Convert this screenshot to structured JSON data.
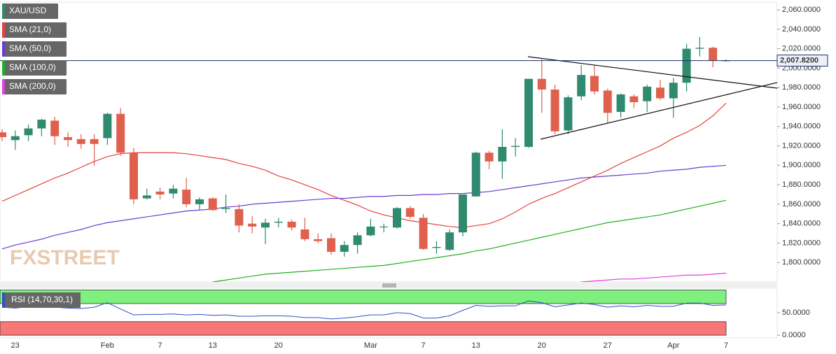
{
  "chart_data": [
    {
      "type": "candlestick",
      "name": "XAU/USD",
      "up_color": "#2f8a6f",
      "down_color": "#e0604e",
      "categories": [
        null,
        "23",
        null,
        null,
        null,
        null,
        null,
        null,
        "Feb",
        null,
        null,
        null,
        "7",
        null,
        null,
        null,
        "13",
        null,
        null,
        null,
        null,
        "20",
        null,
        null,
        null,
        null,
        null,
        null,
        "Mar",
        null,
        null,
        null,
        "7",
        null,
        null,
        null,
        "13",
        null,
        null,
        null,
        null,
        "20",
        null,
        null,
        null,
        null,
        "27",
        null,
        null,
        null,
        null,
        "Apr",
        null,
        null,
        null,
        "7"
      ],
      "open": [
        1934,
        1926,
        1931,
        1938,
        1946,
        1929,
        1927,
        1927,
        1928,
        1953,
        1913,
        1866,
        1873,
        1871,
        1875,
        1860,
        1866,
        1855,
        1855,
        1840,
        1836,
        1841,
        1842,
        1834,
        1824,
        1825,
        1811,
        1818,
        1828,
        1837,
        1836,
        1856,
        1846,
        1815,
        1813,
        1831,
        1868,
        1913,
        1904,
        1919,
        1919,
        1989,
        1978,
        1936,
        1971,
        1992,
        1977,
        1955,
        1971,
        1966,
        1980,
        1969,
        1985,
        2020,
        2021,
        2008
      ],
      "high": [
        1937,
        1936,
        1942,
        1948,
        1950,
        1934,
        1932,
        1932,
        1954,
        1959,
        1918,
        1876,
        1877,
        1880,
        1887,
        1867,
        1867,
        1870,
        1860,
        1848,
        1845,
        1846,
        1844,
        1846,
        1830,
        1830,
        1822,
        1831,
        1845,
        1840,
        1857,
        1858,
        1850,
        1822,
        1834,
        1870,
        1914,
        1915,
        1937,
        1928,
        1989,
        2009,
        1983,
        1972,
        2003,
        2003,
        1979,
        1974,
        1973,
        1983,
        1988,
        1990,
        2025,
        2032,
        2022,
        2009
      ],
      "low": [
        1925,
        1916,
        1925,
        1930,
        1921,
        1919,
        1917,
        1900,
        1921,
        1910,
        1860,
        1865,
        1865,
        1866,
        1857,
        1854,
        1853,
        1851,
        1831,
        1830,
        1819,
        1836,
        1833,
        1822,
        1820,
        1808,
        1806,
        1809,
        1827,
        1831,
        1835,
        1845,
        1813,
        1809,
        1812,
        1827,
        1868,
        1896,
        1886,
        1909,
        1918,
        1954,
        1932,
        1932,
        1967,
        1973,
        1943,
        1949,
        1959,
        1955,
        1967,
        1949,
        1976,
        2012,
        2001,
        2007
      ],
      "close": [
        1929,
        1930,
        1938,
        1947,
        1930,
        1926,
        1922,
        1922,
        1953,
        1913,
        1865,
        1869,
        1870,
        1876,
        1860,
        1865,
        1854,
        1856,
        1838,
        1837,
        1841,
        1842,
        1836,
        1824,
        1822,
        1811,
        1818,
        1828,
        1837,
        1837,
        1856,
        1847,
        1814,
        1816,
        1831,
        1870,
        1913,
        1904,
        1919,
        1920,
        1989,
        1978,
        1935,
        1970,
        1993,
        1976,
        1954,
        1973,
        1965,
        1981,
        1969,
        1985,
        2020,
        2021,
        2008,
        2008
      ],
      "series": [
        {
          "name": "SMA (21,0)",
          "color": "#e8403a",
          "values": [
            1863,
            1869,
            1875,
            1881,
            1887,
            1892,
            1898,
            1904,
            1909,
            1912,
            1913,
            1913,
            1913,
            1913,
            1912,
            1910,
            1908,
            1906,
            1902,
            1899,
            1895,
            1889,
            1885,
            1880,
            1875,
            1869,
            1864,
            1859,
            1853,
            1849,
            1846,
            1843,
            1841,
            1839,
            1837,
            1836,
            1838,
            1840,
            1845,
            1852,
            1860,
            1866,
            1871,
            1877,
            1883,
            1889,
            1895,
            1902,
            1908,
            1914,
            1920,
            1928,
            1934,
            1941,
            1951,
            1964
          ]
        },
        {
          "name": "SMA (50,0)",
          "color": "#6a3cd0",
          "values": [
            1814,
            1818,
            1821,
            1824,
            1828,
            1831,
            1834,
            1838,
            1841,
            1843,
            1845,
            1847,
            1849,
            1851,
            1853,
            1854,
            1855,
            1857,
            1858,
            1860,
            1861,
            1862,
            1863,
            1864,
            1865,
            1866,
            1866,
            1867,
            1868,
            1868,
            1869,
            1869,
            1870,
            1870,
            1871,
            1871,
            1872,
            1873,
            1875,
            1877,
            1879,
            1881,
            1883,
            1885,
            1887,
            1888,
            1889,
            1890,
            1891,
            1892,
            1894,
            1895,
            1896,
            1898,
            1899,
            1900
          ]
        },
        {
          "name": "SMA (100,0)",
          "color": "#22b022",
          "values": [
            null,
            null,
            null,
            null,
            null,
            null,
            null,
            null,
            null,
            null,
            null,
            null,
            null,
            null,
            null,
            null,
            1780,
            1782,
            1784,
            1786,
            1788,
            1789,
            1790,
            1791,
            1792,
            1793,
            1794,
            1795,
            1796,
            1797,
            1799,
            1801,
            1803,
            1805,
            1807,
            1809,
            1812,
            1814,
            1817,
            1820,
            1823,
            1826,
            1829,
            1832,
            1835,
            1838,
            1841,
            1843,
            1845,
            1847,
            1849,
            1852,
            1855,
            1858,
            1861,
            1864
          ]
        },
        {
          "name": "SMA (200,0)",
          "color": "#e040e0",
          "values": [
            null,
            null,
            null,
            null,
            null,
            null,
            null,
            null,
            null,
            null,
            null,
            null,
            null,
            null,
            null,
            null,
            null,
            null,
            null,
            null,
            null,
            null,
            null,
            null,
            null,
            null,
            null,
            null,
            null,
            null,
            null,
            null,
            null,
            null,
            null,
            null,
            null,
            null,
            null,
            null,
            null,
            null,
            null,
            null,
            1780,
            1781,
            1782,
            1783,
            1783,
            1784,
            1785,
            1786,
            1787,
            1787,
            1788,
            1789
          ]
        }
      ],
      "ylim": [
        1780,
        2068
      ],
      "yticks": [
        {
          "value": 1800,
          "label": "1,800.0000"
        },
        {
          "value": 1820,
          "label": "1,820.0000"
        },
        {
          "value": 1840,
          "label": "1,840.0000"
        },
        {
          "value": 1860,
          "label": "1,860.0000"
        },
        {
          "value": 1880,
          "label": "1,880.0000"
        },
        {
          "value": 1900,
          "label": "1,900.0000"
        },
        {
          "value": 1920,
          "label": "1,920.0000"
        },
        {
          "value": 1940,
          "label": "1,940.0000"
        },
        {
          "value": 1960,
          "label": "1,960.0000"
        },
        {
          "value": 1980,
          "label": "1,980.0000"
        },
        {
          "value": 2000,
          "label": "2,000.0000"
        },
        {
          "value": 2020,
          "label": "2,020.0000"
        },
        {
          "value": 2040,
          "label": "2,040.0000"
        },
        {
          "value": 2060,
          "label": "2,060.0000"
        }
      ],
      "last_price": {
        "value": 2007.82,
        "label": "2,007.8200"
      },
      "watermark": "FXSTREET"
    },
    {
      "type": "line",
      "title": "RSI (14,70,30,1)",
      "series": [
        {
          "color": "#3050c8",
          "values": [
            62,
            60,
            63,
            66,
            62,
            60,
            59,
            62,
            72,
            58,
            45,
            46,
            46,
            47,
            45,
            46,
            44,
            45,
            42,
            42,
            43,
            43,
            42,
            39,
            39,
            36,
            38,
            41,
            45,
            45,
            50,
            48,
            38,
            38,
            43,
            55,
            66,
            64,
            65,
            65,
            76,
            72,
            63,
            67,
            71,
            68,
            62,
            65,
            63,
            66,
            64,
            64,
            71,
            71,
            66,
            67
          ]
        }
      ],
      "bands": [
        {
          "range": [
            70,
            100
          ],
          "color": "#7ef07e"
        },
        {
          "range": [
            0,
            30
          ],
          "color": "#f87878"
        }
      ],
      "ylim": [
        -6,
        104
      ],
      "yticks": [
        {
          "value": 50,
          "label": "50.0000"
        },
        {
          "value": 0,
          "label": "0.0000"
        }
      ]
    }
  ]
}
